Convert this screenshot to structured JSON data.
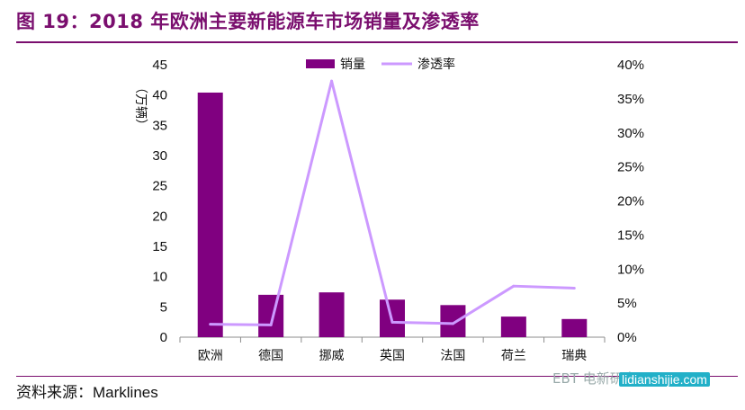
{
  "title": "图 19：2018 年欧洲主要新能源车市场销量及渗透率",
  "source": "资料来源：Marklines",
  "watermark": "EBT 电新研究",
  "watermark_site": "lidianshijie.com",
  "colors": {
    "bar": "#800080",
    "line": "#cc99ff",
    "title": "#7a0e6e"
  },
  "chart_data": {
    "type": "bar",
    "categories": [
      "欧洲",
      "德国",
      "挪威",
      "英国",
      "法国",
      "荷兰",
      "瑞典"
    ],
    "series": [
      {
        "name": "销量",
        "type": "bar",
        "axis": "left",
        "values": [
          40.4,
          7.0,
          7.4,
          6.2,
          5.3,
          3.4,
          3.0
        ]
      },
      {
        "name": "渗透率",
        "type": "line",
        "axis": "right",
        "values": [
          1.9,
          1.8,
          37.6,
          2.2,
          2.0,
          7.5,
          7.2
        ]
      }
    ],
    "ylabel": "（万辆）",
    "ylim": [
      0,
      45
    ],
    "yticks": [
      "0",
      "5",
      "10",
      "15",
      "20",
      "25",
      "30",
      "35",
      "40",
      "45"
    ],
    "y2lim": [
      0,
      40
    ],
    "y2ticks": [
      "0%",
      "5%",
      "10%",
      "15%",
      "20%",
      "25%",
      "30%",
      "35%",
      "40%"
    ],
    "legend_position": "top-center",
    "grid": false
  }
}
